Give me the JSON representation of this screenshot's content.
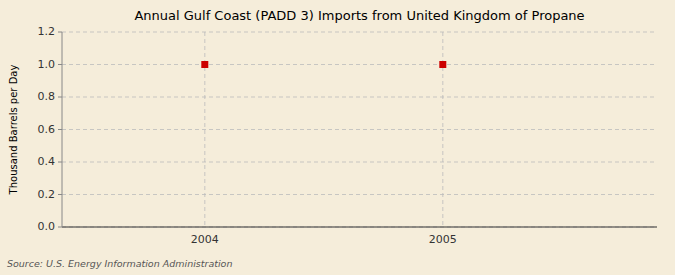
{
  "chart_data": {
    "type": "scatter",
    "title": "Annual Gulf Coast (PADD 3) Imports from United Kingdom of Propane",
    "y_label": "Thousand Barrels per Day",
    "source": "Source: U.S. Energy Information Administration",
    "x": [
      2004,
      2005
    ],
    "values": [
      1.0,
      1.0
    ],
    "color": "#CC0000",
    "marker": "square",
    "xlim": [
      2003.4,
      2005.9
    ],
    "ylim": [
      0.0,
      1.2
    ],
    "xticks": [
      2004,
      2005
    ],
    "yticks": [
      {
        "value": 0.0,
        "label": "0.0"
      },
      0.2,
      0.4,
      0.6,
      0.8,
      {
        "value": 1.0,
        "label": "1.0"
      },
      1.2
    ],
    "grid": true
  }
}
